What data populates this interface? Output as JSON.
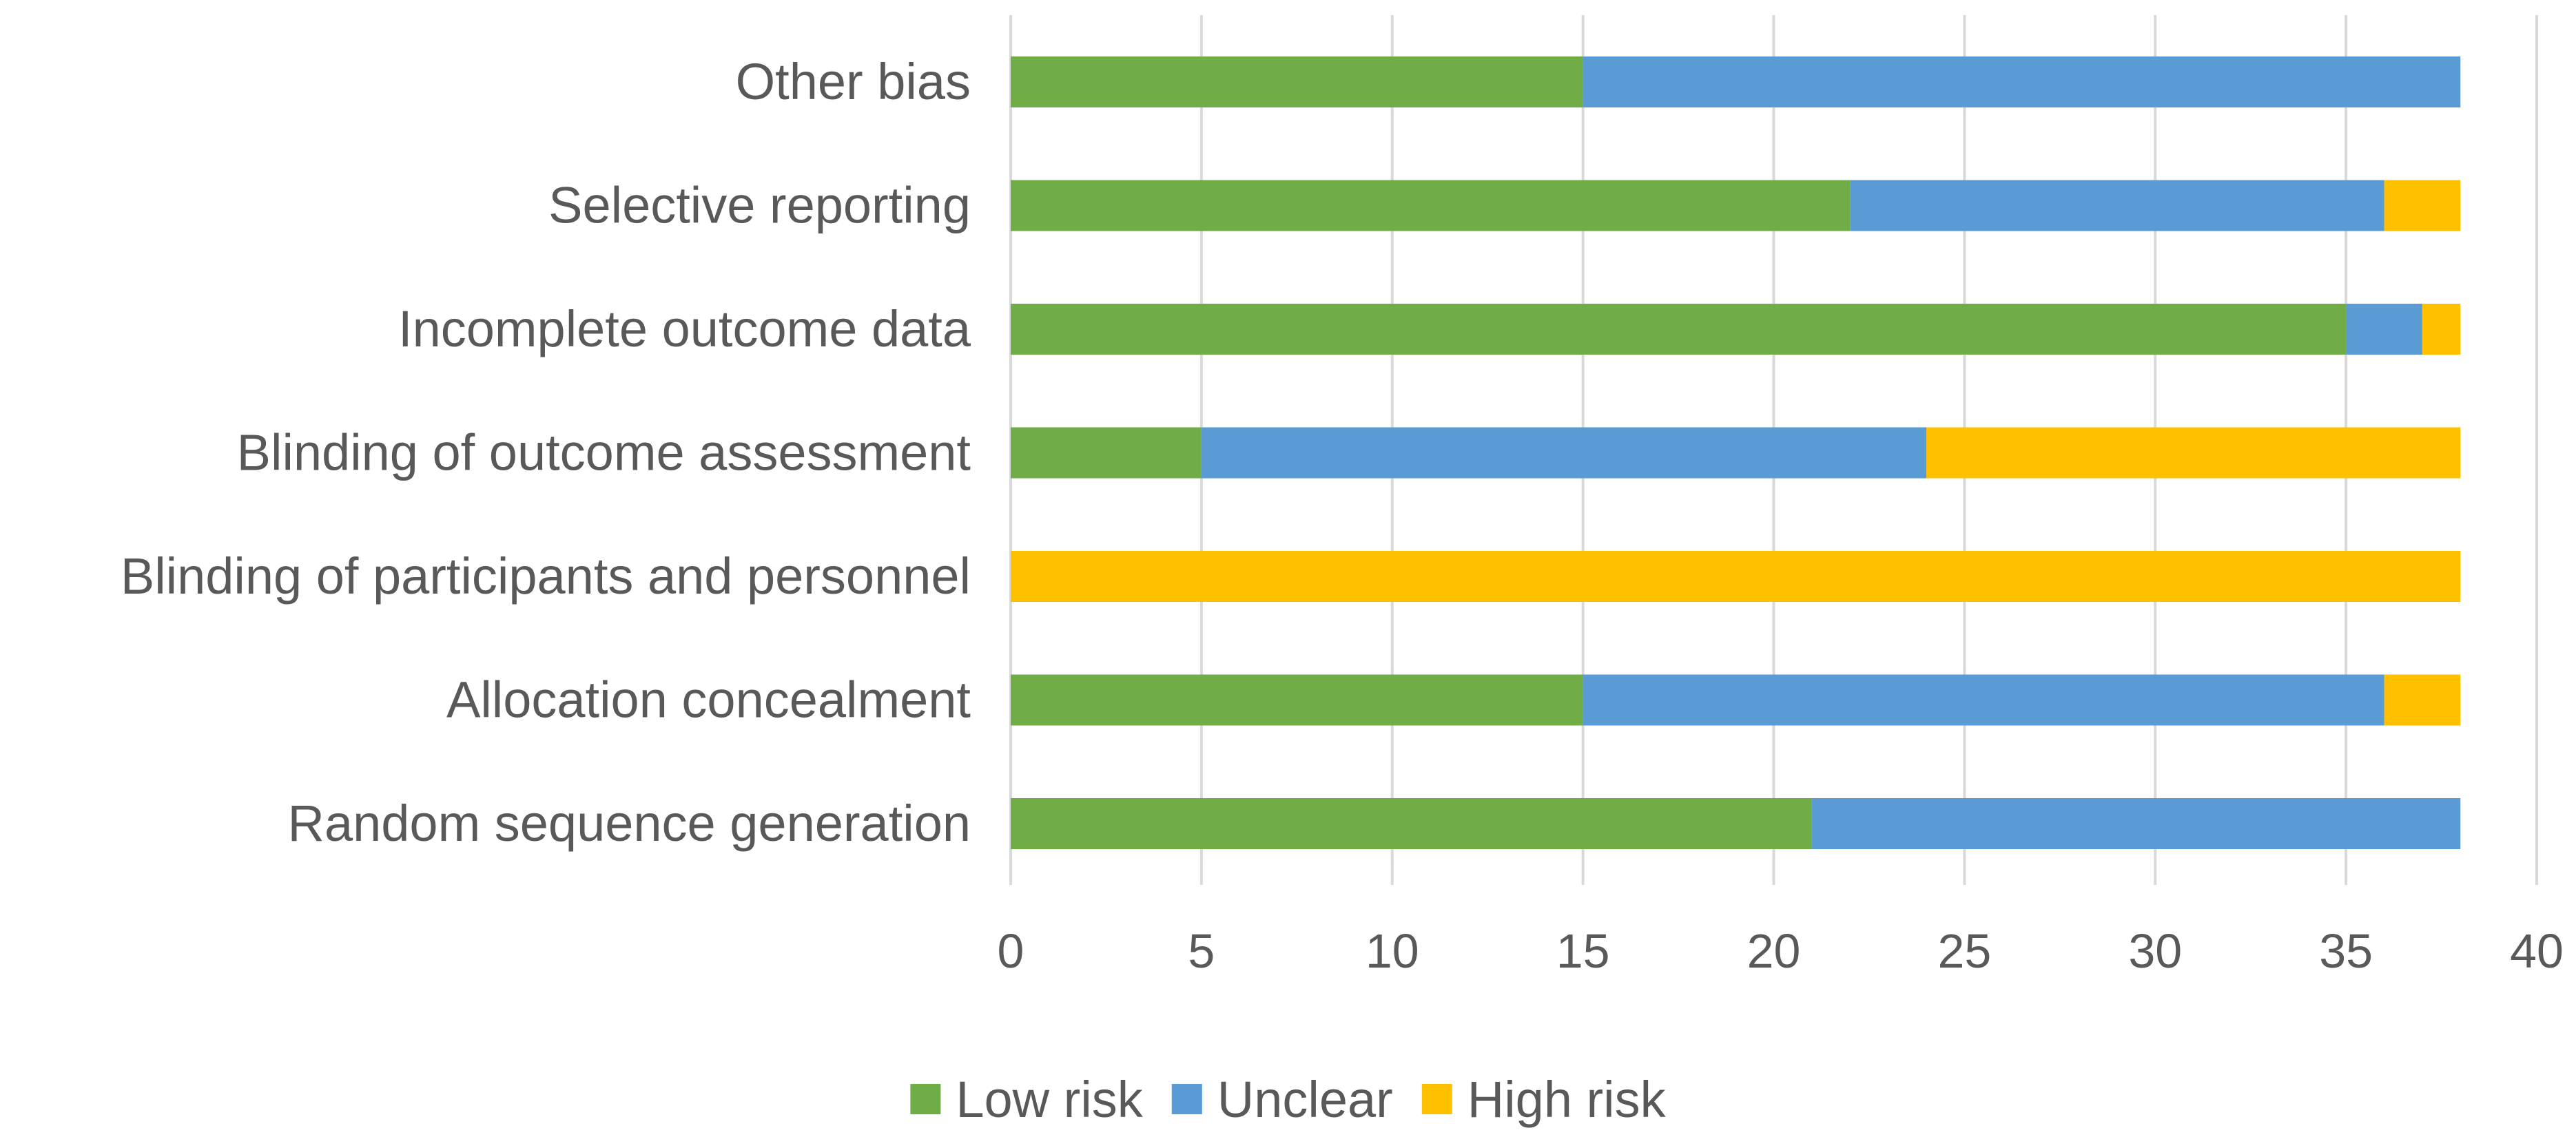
{
  "chart_data": {
    "type": "bar",
    "orientation": "horizontal",
    "stacked": true,
    "title": "",
    "xlabel": "",
    "ylabel": "",
    "xlim": [
      0,
      40
    ],
    "x_ticks": [
      0,
      5,
      10,
      15,
      20,
      25,
      30,
      35,
      40
    ],
    "grid": true,
    "legend_position": "bottom",
    "categories": [
      "Other bias",
      "Selective reporting",
      "Incomplete outcome data",
      "Blinding of outcome assessment",
      "Blinding of participants and personnel",
      "Allocation concealment",
      "Random sequence generation"
    ],
    "series": [
      {
        "name": "Low risk",
        "color": "#70ad47",
        "values": [
          15,
          22,
          35,
          5,
          0,
          15,
          21
        ]
      },
      {
        "name": "Unclear",
        "color": "#5b9bd5",
        "values": [
          23,
          14,
          2,
          19,
          0,
          21,
          17
        ]
      },
      {
        "name": "High risk",
        "color": "#ffc000",
        "values": [
          0,
          2,
          1,
          14,
          38,
          2,
          0
        ]
      }
    ]
  }
}
